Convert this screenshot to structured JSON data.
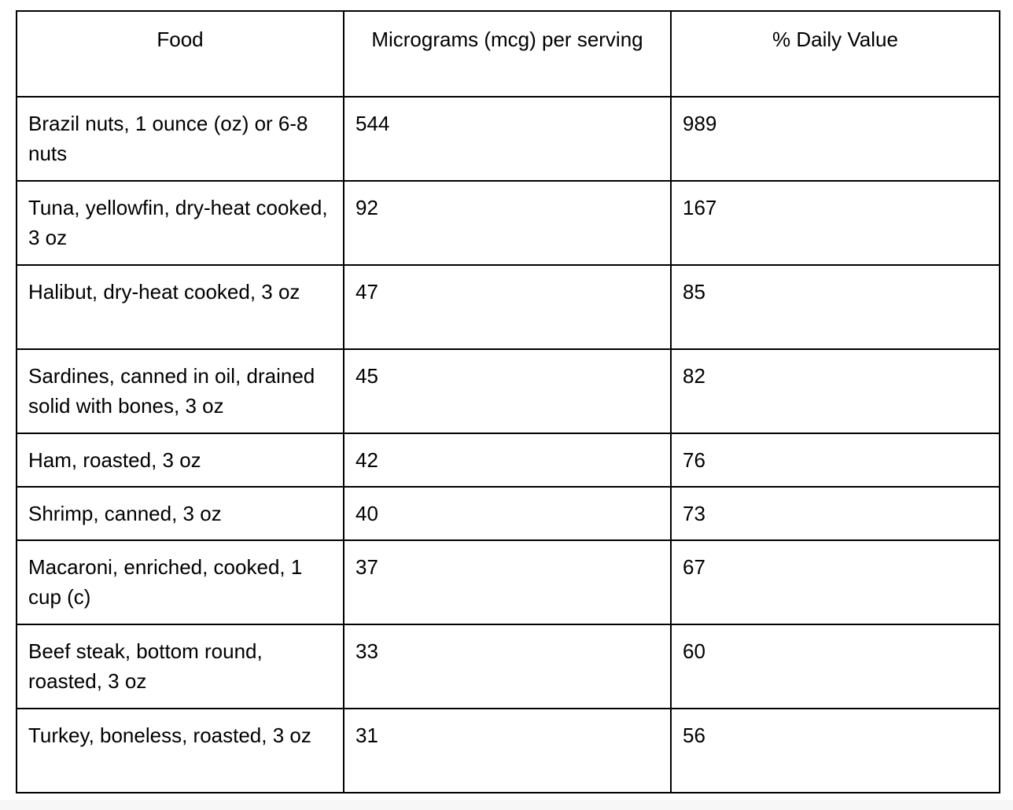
{
  "table": {
    "headers": [
      "Food",
      "Micrograms (mcg) per serving",
      "% Daily Value"
    ],
    "rows": [
      {
        "food": "Brazil nuts, 1 ounce (oz) or 6-8 nuts",
        "mcg": "544",
        "dv": "989",
        "lines": 2
      },
      {
        "food": "Tuna, yellowfin, dry-heat cooked, 3 oz",
        "mcg": "92",
        "dv": "167",
        "lines": 2
      },
      {
        "food": "Halibut, dry-heat cooked, 3 oz",
        "mcg": "47",
        "dv": "85",
        "lines": 2
      },
      {
        "food": "Sardines, canned in oil, drained solid with bones, 3 oz",
        "mcg": "45",
        "dv": "82",
        "lines": 2
      },
      {
        "food": "Ham, roasted, 3 oz",
        "mcg": "42",
        "dv": "76",
        "lines": 1
      },
      {
        "food": "Shrimp, canned, 3 oz",
        "mcg": "40",
        "dv": "73",
        "lines": 1
      },
      {
        "food": "Macaroni, enriched, cooked, 1 cup (c)",
        "mcg": "37",
        "dv": "67",
        "lines": 2
      },
      {
        "food": "Beef steak, bottom round, roasted, 3 oz",
        "mcg": "33",
        "dv": "60",
        "lines": 2
      },
      {
        "food": "Turkey, boneless, roasted, 3 oz",
        "mcg": "31",
        "dv": "56",
        "lines": 2
      }
    ]
  }
}
